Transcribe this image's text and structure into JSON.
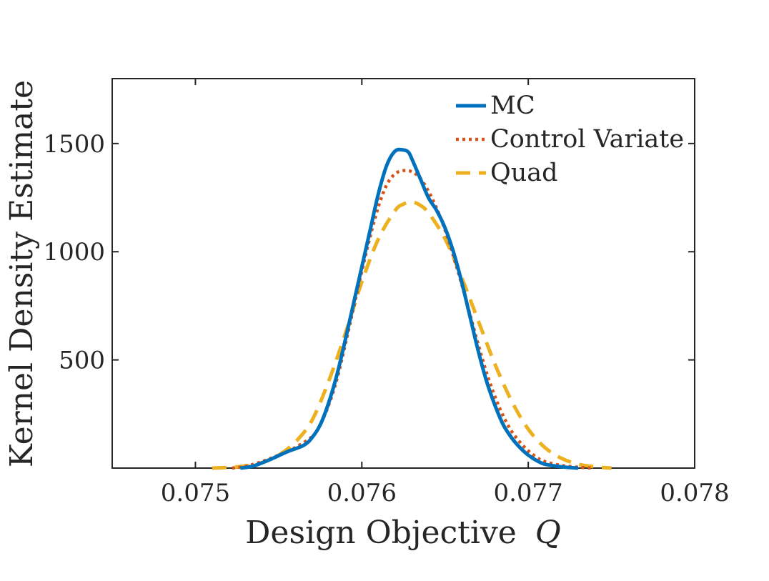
{
  "chart_data": {
    "type": "line",
    "title": "",
    "xlabel": "Design Objective",
    "xlabel_var": "Q",
    "ylabel": "Kernel Density Estimate",
    "xlim": [
      0.0745,
      0.078
    ],
    "ylim": [
      0,
      1800
    ],
    "xticks": [
      0.075,
      0.076,
      0.077,
      0.078
    ],
    "xtick_labels": [
      "0.075",
      "0.076",
      "0.077",
      "0.078"
    ],
    "yticks": [
      500,
      1000,
      1500
    ],
    "ytick_labels": [
      "500",
      "1000",
      "1500"
    ],
    "grid": false,
    "legend_position": "top-right",
    "series": [
      {
        "name": "MC",
        "style": "solid",
        "color": "#0072BD",
        "x": [
          0.07527,
          0.07535,
          0.07545,
          0.07555,
          0.07565,
          0.0757,
          0.07575,
          0.0758,
          0.07585,
          0.0759,
          0.07595,
          0.076,
          0.07605,
          0.0761,
          0.07615,
          0.0762,
          0.07625,
          0.07628,
          0.0763,
          0.07635,
          0.0764,
          0.07645,
          0.0765,
          0.07655,
          0.0766,
          0.07665,
          0.0767,
          0.07675,
          0.0768,
          0.07685,
          0.0769,
          0.07695,
          0.077,
          0.07705,
          0.0771,
          0.0772,
          0.0773
        ],
        "y": [
          0,
          10,
          40,
          75,
          105,
          140,
          200,
          300,
          430,
          590,
          760,
          930,
          1100,
          1270,
          1400,
          1465,
          1470,
          1460,
          1430,
          1340,
          1250,
          1190,
          1110,
          1000,
          860,
          700,
          540,
          400,
          290,
          200,
          140,
          95,
          60,
          35,
          18,
          6,
          0
        ]
      },
      {
        "name": "Control Variate",
        "style": "dotted",
        "color": "#D95319",
        "x": [
          0.07522,
          0.0753,
          0.0754,
          0.0755,
          0.0756,
          0.0757,
          0.07575,
          0.0758,
          0.07585,
          0.0759,
          0.07595,
          0.076,
          0.07605,
          0.0761,
          0.07615,
          0.0762,
          0.07625,
          0.0763,
          0.07635,
          0.0764,
          0.07645,
          0.0765,
          0.07655,
          0.0766,
          0.07665,
          0.0767,
          0.07675,
          0.0768,
          0.07685,
          0.0769,
          0.07695,
          0.077,
          0.07705,
          0.0771,
          0.0772,
          0.0773,
          0.07738
        ],
        "y": [
          0,
          8,
          30,
          60,
          95,
          145,
          200,
          290,
          410,
          570,
          740,
          910,
          1070,
          1210,
          1310,
          1360,
          1375,
          1370,
          1340,
          1280,
          1200,
          1100,
          980,
          850,
          710,
          570,
          440,
          330,
          240,
          170,
          120,
          80,
          50,
          30,
          12,
          4,
          0
        ]
      },
      {
        "name": "Quad",
        "style": "dashed",
        "color": "#EDB120",
        "x": [
          0.0751,
          0.0752,
          0.0753,
          0.0754,
          0.0755,
          0.0756,
          0.0757,
          0.0758,
          0.0759,
          0.076,
          0.0761,
          0.0762,
          0.07625,
          0.0763,
          0.07635,
          0.0764,
          0.0765,
          0.0766,
          0.0767,
          0.0768,
          0.0769,
          0.077,
          0.0771,
          0.0772,
          0.0773,
          0.0774,
          0.0775
        ],
        "y": [
          0,
          3,
          10,
          25,
          60,
          120,
          220,
          400,
          620,
          860,
          1060,
          1190,
          1220,
          1230,
          1215,
          1180,
          1060,
          880,
          680,
          480,
          310,
          180,
          95,
          45,
          18,
          6,
          0
        ]
      }
    ]
  }
}
